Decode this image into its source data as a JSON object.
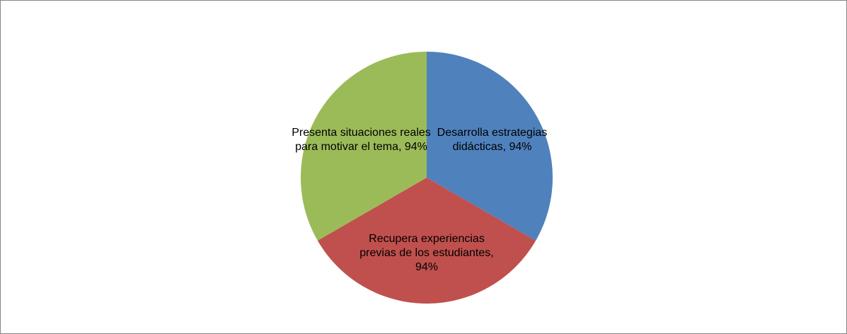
{
  "chart_data": {
    "type": "pie",
    "values": [
      94,
      94,
      94
    ],
    "value_labels": [
      "Desarrolla estrategias didácticas, 94%",
      "Recupera experiencias previas de los estudiantes, 94%",
      "Presenta situaciones reales para motivar el tema, 94%"
    ],
    "colors": [
      "#4f81bd",
      "#c0504d",
      "#9bbb59"
    ]
  }
}
